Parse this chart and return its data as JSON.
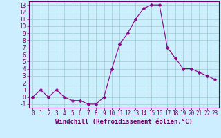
{
  "x": [
    0,
    1,
    2,
    3,
    4,
    5,
    6,
    7,
    8,
    9,
    10,
    11,
    12,
    13,
    14,
    15,
    16,
    17,
    18,
    19,
    20,
    21,
    22,
    23
  ],
  "y": [
    0,
    1,
    0,
    1,
    0,
    -0.5,
    -0.5,
    -1,
    -1,
    0,
    4,
    7.5,
    9,
    11,
    12.5,
    13,
    13,
    7,
    5.5,
    4,
    4,
    3.5,
    3,
    2.5
  ],
  "xlim": [
    -0.5,
    23.5
  ],
  "ylim": [
    -1.5,
    13.5
  ],
  "yticks": [
    -1,
    0,
    1,
    2,
    3,
    4,
    5,
    6,
    7,
    8,
    9,
    10,
    11,
    12,
    13
  ],
  "xticks": [
    0,
    1,
    2,
    3,
    4,
    5,
    6,
    7,
    8,
    9,
    10,
    11,
    12,
    13,
    14,
    15,
    16,
    17,
    18,
    19,
    20,
    21,
    22,
    23
  ],
  "xlabel": "Windchill (Refroidissement éolien,°C)",
  "line_color": "#880088",
  "marker": "D",
  "marker_size": 2.5,
  "bg_color": "#cceeff",
  "grid_color": "#99cccc",
  "spine_color": "#660066",
  "tick_color": "#660066",
  "label_color": "#660066",
  "font_size": 5.5,
  "xlabel_font_size": 6.5
}
